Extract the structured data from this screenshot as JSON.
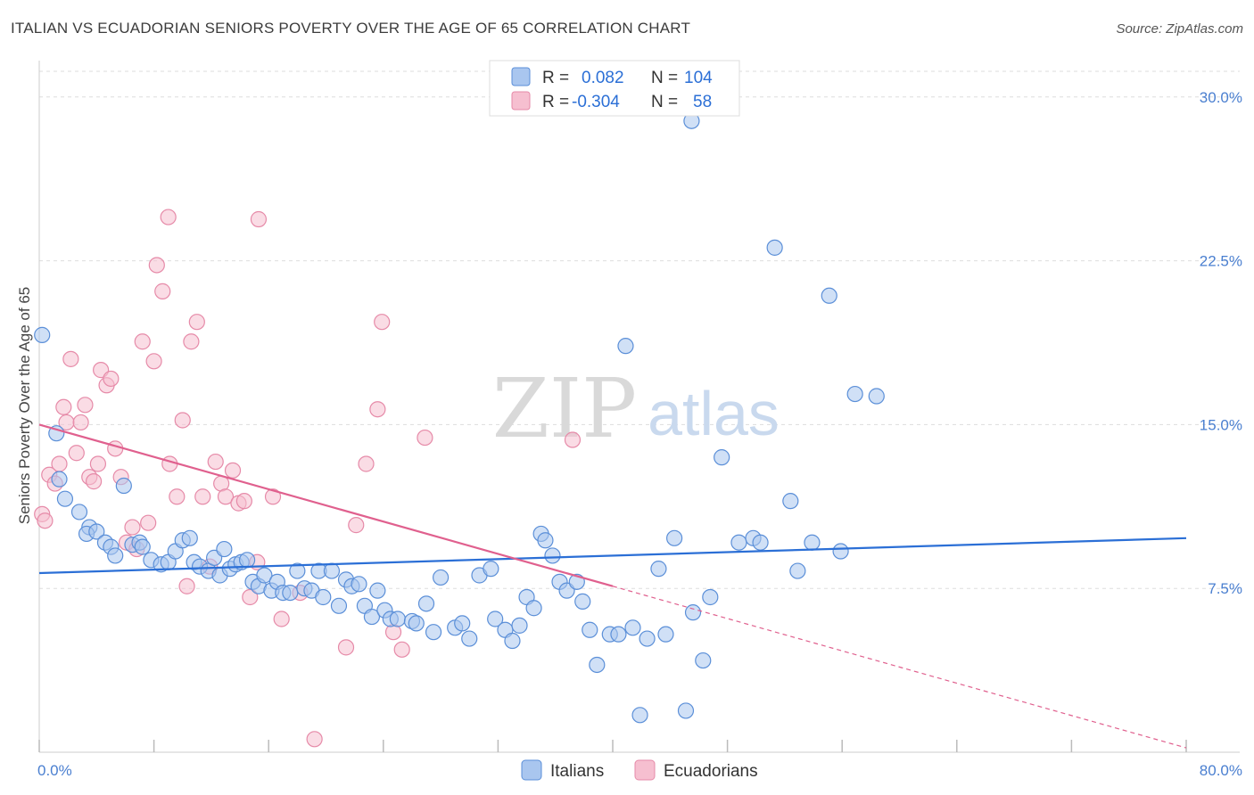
{
  "header": {
    "title": "ITALIAN VS ECUADORIAN SENIORS POVERTY OVER THE AGE OF 65 CORRELATION CHART",
    "source": "Source: ZipAtlas.com"
  },
  "watermark": {
    "zip": "ZIP",
    "atlas": "atlas"
  },
  "colors": {
    "italians_fill": "#a9c6ef",
    "italians_stroke": "#5b8fd8",
    "italians_line": "#2b6fd6",
    "ecuadorians_fill": "#f6bfd0",
    "ecuadorians_stroke": "#e68aa8",
    "ecuadorians_line": "#e0608e",
    "tick_text": "#4a7fd0",
    "grid": "#dddddd"
  },
  "legend": {
    "rows": [
      {
        "r_label": "R =",
        "r_value": "0.082",
        "n_label": "N =",
        "n_value": "104"
      },
      {
        "r_label": "R =",
        "r_value": "-0.304",
        "n_label": "N =",
        "n_value": "58"
      }
    ]
  },
  "chart_data": {
    "type": "scatter",
    "ylabel": "Seniors Poverty Over the Age of 65",
    "xlim": [
      0,
      80
    ],
    "ylim": [
      0,
      31.5
    ],
    "x_tick_labels": [
      "0.0%",
      "80.0%"
    ],
    "y_ticks": [
      7.5,
      15.0,
      22.5,
      30.0
    ],
    "y_tick_labels": [
      "7.5%",
      "15.0%",
      "22.5%",
      "30.0%"
    ],
    "grid": true,
    "legend_position": "bottom-center",
    "series": [
      {
        "name": "Italians",
        "trend": {
          "x": [
            0,
            80
          ],
          "y": [
            8.2,
            9.8
          ]
        },
        "points": [
          [
            0.2,
            19.1
          ],
          [
            1.2,
            14.6
          ],
          [
            1.4,
            12.5
          ],
          [
            1.8,
            11.6
          ],
          [
            2.8,
            11.0
          ],
          [
            3.5,
            10.3
          ],
          [
            3.3,
            10.0
          ],
          [
            4.0,
            10.1
          ],
          [
            4.6,
            9.6
          ],
          [
            5.0,
            9.4
          ],
          [
            5.3,
            9.0
          ],
          [
            5.9,
            12.2
          ],
          [
            6.5,
            9.5
          ],
          [
            7.0,
            9.6
          ],
          [
            7.2,
            9.4
          ],
          [
            7.8,
            8.8
          ],
          [
            8.5,
            8.6
          ],
          [
            9.0,
            8.7
          ],
          [
            9.5,
            9.2
          ],
          [
            10.0,
            9.7
          ],
          [
            10.5,
            9.8
          ],
          [
            10.8,
            8.7
          ],
          [
            11.2,
            8.5
          ],
          [
            11.8,
            8.3
          ],
          [
            12.2,
            8.9
          ],
          [
            12.6,
            8.1
          ],
          [
            12.9,
            9.3
          ],
          [
            13.3,
            8.4
          ],
          [
            13.7,
            8.6
          ],
          [
            14.1,
            8.7
          ],
          [
            14.5,
            8.8
          ],
          [
            14.9,
            7.8
          ],
          [
            15.3,
            7.6
          ],
          [
            15.7,
            8.1
          ],
          [
            16.2,
            7.4
          ],
          [
            16.6,
            7.8
          ],
          [
            17.0,
            7.3
          ],
          [
            17.5,
            7.3
          ],
          [
            18.0,
            8.3
          ],
          [
            18.5,
            7.5
          ],
          [
            19.0,
            7.4
          ],
          [
            19.5,
            8.3
          ],
          [
            19.8,
            7.1
          ],
          [
            20.4,
            8.3
          ],
          [
            20.9,
            6.7
          ],
          [
            21.4,
            7.9
          ],
          [
            21.8,
            7.6
          ],
          [
            22.3,
            7.7
          ],
          [
            22.7,
            6.7
          ],
          [
            23.2,
            6.2
          ],
          [
            23.6,
            7.4
          ],
          [
            24.1,
            6.5
          ],
          [
            24.5,
            6.1
          ],
          [
            25.0,
            6.1
          ],
          [
            26.0,
            6.0
          ],
          [
            26.3,
            5.9
          ],
          [
            27.0,
            6.8
          ],
          [
            27.5,
            5.5
          ],
          [
            28.0,
            8.0
          ],
          [
            29.0,
            5.7
          ],
          [
            29.5,
            5.9
          ],
          [
            30.0,
            5.2
          ],
          [
            30.7,
            8.1
          ],
          [
            31.5,
            8.4
          ],
          [
            31.8,
            6.1
          ],
          [
            32.5,
            5.6
          ],
          [
            33.0,
            5.1
          ],
          [
            33.5,
            5.8
          ],
          [
            34.0,
            7.1
          ],
          [
            34.5,
            6.6
          ],
          [
            35.0,
            10.0
          ],
          [
            35.3,
            9.7
          ],
          [
            35.8,
            9.0
          ],
          [
            36.3,
            7.8
          ],
          [
            36.8,
            7.4
          ],
          [
            37.5,
            7.8
          ],
          [
            37.9,
            6.9
          ],
          [
            38.4,
            5.6
          ],
          [
            38.9,
            4.0
          ],
          [
            39.8,
            5.4
          ],
          [
            40.4,
            5.4
          ],
          [
            40.9,
            18.6
          ],
          [
            41.4,
            5.7
          ],
          [
            41.9,
            1.7
          ],
          [
            42.4,
            5.2
          ],
          [
            43.2,
            8.4
          ],
          [
            43.7,
            5.4
          ],
          [
            44.3,
            9.8
          ],
          [
            45.1,
            1.9
          ],
          [
            45.6,
            6.4
          ],
          [
            46.3,
            4.2
          ],
          [
            46.8,
            7.1
          ],
          [
            47.6,
            13.5
          ],
          [
            48.8,
            9.6
          ],
          [
            49.8,
            9.8
          ],
          [
            50.3,
            9.6
          ],
          [
            51.3,
            23.1
          ],
          [
            52.4,
            11.5
          ],
          [
            52.9,
            8.3
          ],
          [
            53.9,
            9.6
          ],
          [
            55.1,
            20.9
          ],
          [
            55.9,
            9.2
          ],
          [
            56.9,
            16.4
          ],
          [
            58.4,
            16.3
          ],
          [
            45.5,
            28.9
          ]
        ]
      },
      {
        "name": "Ecuadorians",
        "trend": {
          "x": [
            0,
            40
          ],
          "y": [
            15.0,
            7.6
          ]
        },
        "points": [
          [
            0.2,
            10.9
          ],
          [
            0.4,
            10.6
          ],
          [
            0.7,
            12.7
          ],
          [
            1.1,
            12.3
          ],
          [
            1.4,
            13.2
          ],
          [
            1.7,
            15.8
          ],
          [
            1.9,
            15.1
          ],
          [
            2.2,
            18.0
          ],
          [
            2.6,
            13.7
          ],
          [
            2.9,
            15.1
          ],
          [
            3.2,
            15.9
          ],
          [
            3.5,
            12.6
          ],
          [
            3.8,
            12.4
          ],
          [
            4.1,
            13.2
          ],
          [
            4.3,
            17.5
          ],
          [
            4.7,
            16.8
          ],
          [
            5.0,
            17.1
          ],
          [
            5.3,
            13.9
          ],
          [
            5.7,
            12.6
          ],
          [
            6.1,
            9.6
          ],
          [
            6.5,
            10.3
          ],
          [
            6.8,
            9.3
          ],
          [
            7.2,
            18.8
          ],
          [
            7.6,
            10.5
          ],
          [
            8.0,
            17.9
          ],
          [
            8.2,
            22.3
          ],
          [
            8.6,
            21.1
          ],
          [
            9.1,
            13.2
          ],
          [
            9.6,
            11.7
          ],
          [
            10.0,
            15.2
          ],
          [
            10.3,
            7.6
          ],
          [
            10.6,
            18.8
          ],
          [
            11.0,
            19.7
          ],
          [
            11.4,
            11.7
          ],
          [
            11.9,
            8.5
          ],
          [
            12.3,
            13.3
          ],
          [
            12.7,
            12.3
          ],
          [
            13.0,
            11.7
          ],
          [
            13.5,
            12.9
          ],
          [
            13.9,
            11.4
          ],
          [
            14.3,
            11.5
          ],
          [
            14.7,
            7.1
          ],
          [
            15.2,
            8.7
          ],
          [
            9.0,
            24.5
          ],
          [
            15.3,
            24.4
          ],
          [
            16.3,
            11.7
          ],
          [
            16.9,
            6.1
          ],
          [
            18.2,
            7.3
          ],
          [
            19.2,
            0.6
          ],
          [
            21.4,
            4.8
          ],
          [
            22.1,
            10.4
          ],
          [
            22.8,
            13.2
          ],
          [
            23.6,
            15.7
          ],
          [
            23.9,
            19.7
          ],
          [
            24.7,
            5.5
          ],
          [
            25.3,
            4.7
          ],
          [
            26.9,
            14.4
          ],
          [
            37.2,
            14.3
          ]
        ]
      }
    ]
  }
}
